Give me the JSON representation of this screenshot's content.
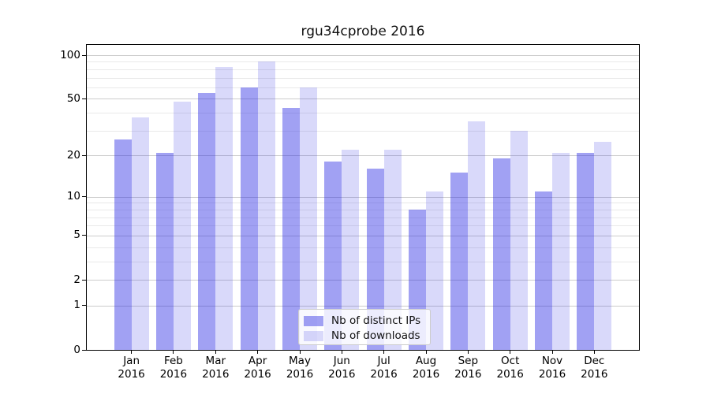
{
  "chart_data": {
    "type": "bar",
    "title": "rgu34cprobe 2016",
    "categories": [
      "Jan",
      "Feb",
      "Mar",
      "Apr",
      "May",
      "Jun",
      "Jul",
      "Aug",
      "Sep",
      "Oct",
      "Nov",
      "Dec"
    ],
    "x_year_label": "2016",
    "series": [
      {
        "name": "Nb of distinct IPs",
        "color": "rgba(42,42,228,0.44)",
        "values": [
          26,
          21,
          55,
          60,
          43,
          18,
          16,
          8,
          15,
          19,
          11,
          21
        ]
      },
      {
        "name": "Nb of downloads",
        "color": "rgba(42,42,228,0.18)",
        "values": [
          37,
          48,
          83,
          91,
          60,
          22,
          22,
          11,
          35,
          30,
          21,
          25
        ]
      }
    ],
    "yscale": "log10(value+1)",
    "ylim": [
      0,
      118
    ],
    "yticks": [
      100,
      50,
      20,
      10,
      5,
      2,
      1,
      0
    ],
    "major_gridlines": [
      1,
      2,
      5,
      10,
      20,
      50,
      100
    ],
    "minor_gridlines": [
      3,
      4,
      6,
      7,
      8,
      9,
      30,
      40,
      60,
      70,
      80,
      90
    ],
    "grid": true,
    "legend_position": "lower center",
    "axis_color": "#000000",
    "major_grid_color": "#cccccc",
    "minor_grid_color": "#e9e9e9"
  }
}
